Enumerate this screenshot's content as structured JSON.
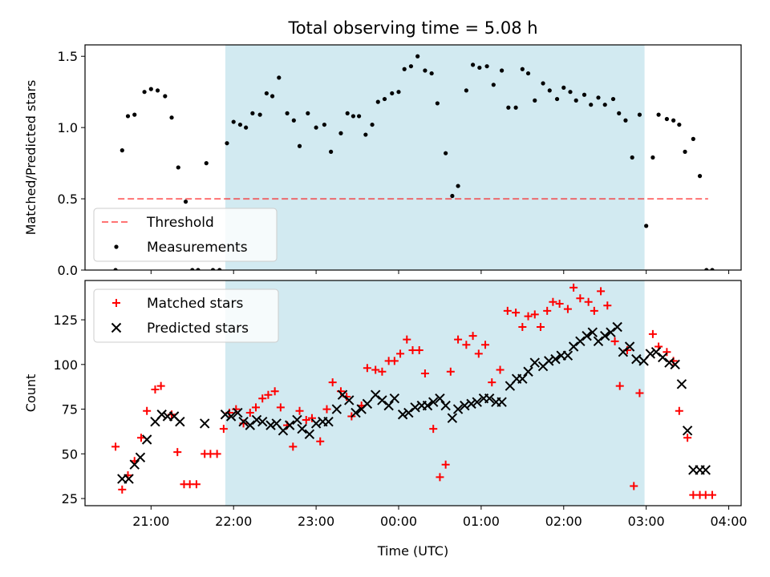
{
  "title": "Total observing time = 5.08 h",
  "xlabel": "Time (UTC)",
  "colors": {
    "night_band": "#add8e6",
    "threshold": "#ff0000",
    "measurements": "#000000",
    "matched": "#ff0000",
    "predicted": "#000000"
  },
  "chart_data": [
    {
      "type": "scatter",
      "ylabel": "Matched/Predicted stars",
      "x_unit": "hours UTC (values past 24 are after midnight)",
      "xlim": [
        20.2,
        28.15
      ],
      "ylim": [
        0,
        1.58
      ],
      "yticks": [
        0.0,
        0.5,
        1.0,
        1.5
      ],
      "ytick_labels": [
        "0.0",
        "0.5",
        "1.0",
        "1.5"
      ],
      "xticks": [
        21,
        22,
        23,
        24,
        25,
        26,
        27,
        28
      ],
      "xtick_labels": [
        "",
        "",
        "",
        "",
        "",
        "",
        "",
        ""
      ],
      "shaded_region": {
        "x0": 21.9,
        "x1": 26.98
      },
      "threshold": {
        "name": "Threshold",
        "y": 0.5,
        "x0": 20.6,
        "x1": 27.75,
        "style": "dashed"
      },
      "legend": {
        "position": "lower-left",
        "entries": [
          "Threshold",
          "Measurements"
        ]
      },
      "series": [
        {
          "name": "Measurements",
          "marker": "dot",
          "x": [
            20.57,
            20.65,
            20.72,
            20.8,
            20.92,
            21.0,
            21.08,
            21.17,
            21.25,
            21.33,
            21.42,
            21.5,
            21.57,
            21.67,
            21.75,
            21.83,
            21.92,
            22.0,
            22.08,
            22.15,
            22.23,
            22.32,
            22.4,
            22.47,
            22.55,
            22.65,
            22.73,
            22.8,
            22.9,
            23.0,
            23.1,
            23.18,
            23.3,
            23.38,
            23.45,
            23.52,
            23.6,
            23.68,
            23.75,
            23.83,
            23.92,
            24.0,
            24.07,
            24.15,
            24.23,
            24.32,
            24.4,
            24.47,
            24.57,
            24.65,
            24.72,
            24.82,
            24.9,
            24.98,
            25.07,
            25.15,
            25.25,
            25.33,
            25.42,
            25.5,
            25.57,
            25.65,
            25.75,
            25.83,
            25.92,
            26.0,
            26.08,
            26.15,
            26.25,
            26.33,
            26.42,
            26.5,
            26.6,
            26.67,
            26.75,
            26.83,
            26.92,
            27.0,
            27.08,
            27.15,
            27.25,
            27.33,
            27.4,
            27.47,
            27.57,
            27.65,
            27.73,
            27.8
          ],
          "y": [
            0.0,
            0.84,
            1.08,
            1.09,
            1.25,
            1.27,
            1.26,
            1.22,
            1.07,
            0.72,
            0.48,
            0.0,
            0.0,
            0.75,
            0.0,
            0.0,
            0.89,
            1.04,
            1.02,
            1.0,
            1.1,
            1.09,
            1.24,
            1.22,
            1.35,
            1.1,
            1.05,
            0.87,
            1.1,
            1.0,
            1.02,
            0.83,
            0.96,
            1.1,
            1.08,
            1.08,
            0.95,
            1.02,
            1.18,
            1.2,
            1.24,
            1.25,
            1.41,
            1.43,
            1.5,
            1.4,
            1.38,
            1.17,
            0.82,
            0.52,
            0.59,
            1.26,
            1.44,
            1.42,
            1.43,
            1.3,
            1.4,
            1.14,
            1.14,
            1.41,
            1.38,
            1.19,
            1.31,
            1.26,
            1.2,
            1.28,
            1.25,
            1.19,
            1.23,
            1.16,
            1.21,
            1.16,
            1.2,
            1.1,
            1.05,
            0.79,
            1.09,
            0.31,
            0.79,
            1.09,
            1.06,
            1.05,
            1.02,
            0.83,
            0.92,
            0.66,
            0.0,
            0.0
          ]
        }
      ]
    },
    {
      "type": "scatter",
      "ylabel": "Count",
      "x_unit": "hours UTC (values past 24 are after midnight)",
      "xlim": [
        20.2,
        28.15
      ],
      "ylim": [
        21,
        147
      ],
      "yticks": [
        25,
        50,
        75,
        100,
        125
      ],
      "ytick_labels": [
        "25",
        "50",
        "75",
        "100",
        "125"
      ],
      "xticks": [
        21,
        22,
        23,
        24,
        25,
        26,
        27,
        28
      ],
      "xtick_labels": [
        "21:00",
        "22:00",
        "23:00",
        "00:00",
        "01:00",
        "02:00",
        "03:00",
        "04:00"
      ],
      "shaded_region": {
        "x0": 21.9,
        "x1": 26.98
      },
      "legend": {
        "position": "upper-left",
        "entries": [
          "Matched stars",
          "Predicted stars"
        ]
      },
      "series": [
        {
          "name": "Matched stars",
          "marker": "plus",
          "x": [
            20.57,
            20.65,
            20.72,
            20.8,
            20.88,
            20.95,
            21.05,
            21.12,
            21.25,
            21.32,
            21.4,
            21.47,
            21.55,
            21.65,
            21.72,
            21.8,
            21.88,
            21.95,
            22.03,
            22.12,
            22.2,
            22.27,
            22.35,
            22.42,
            22.5,
            22.57,
            22.65,
            22.72,
            22.8,
            22.88,
            22.95,
            23.05,
            23.13,
            23.2,
            23.3,
            23.37,
            23.43,
            23.55,
            23.62,
            23.72,
            23.8,
            23.88,
            23.95,
            24.02,
            24.1,
            24.17,
            24.25,
            24.32,
            24.42,
            24.5,
            24.57,
            24.63,
            24.72,
            24.82,
            24.9,
            24.97,
            25.05,
            25.13,
            25.23,
            25.32,
            25.42,
            25.5,
            25.57,
            25.65,
            25.72,
            25.8,
            25.87,
            25.95,
            26.05,
            26.12,
            26.2,
            26.3,
            26.37,
            26.45,
            26.53,
            26.62,
            26.68,
            26.77,
            26.85,
            26.92,
            27.08,
            27.15,
            27.25,
            27.33,
            27.4,
            27.5,
            27.57,
            27.65,
            27.72,
            27.8
          ],
          "y": [
            54,
            30,
            38,
            46,
            59,
            74,
            86,
            88,
            72,
            51,
            33,
            33,
            33,
            50,
            50,
            50,
            64,
            73,
            75,
            67,
            73,
            76,
            81,
            83,
            85,
            76,
            66,
            54,
            74,
            69,
            70,
            57,
            75,
            90,
            85,
            82,
            71,
            77,
            98,
            97,
            96,
            102,
            102,
            106,
            114,
            108,
            108,
            95,
            64,
            37,
            44,
            96,
            114,
            111,
            116,
            106,
            111,
            90,
            97,
            130,
            129,
            121,
            127,
            128,
            121,
            130,
            135,
            134,
            131,
            143,
            137,
            135,
            130,
            141,
            133,
            113,
            88,
            108,
            32,
            84,
            117,
            110,
            107,
            102,
            74,
            59,
            27,
            27,
            27,
            27
          ]
        },
        {
          "name": "Predicted stars",
          "marker": "x",
          "x": [
            20.65,
            20.73,
            20.8,
            20.87,
            20.95,
            21.05,
            21.13,
            21.2,
            21.28,
            21.35,
            21.65,
            21.9,
            21.97,
            22.05,
            22.12,
            22.2,
            22.28,
            22.35,
            22.45,
            22.52,
            22.6,
            22.68,
            22.77,
            22.83,
            22.92,
            23.0,
            23.08,
            23.15,
            23.25,
            23.32,
            23.4,
            23.48,
            23.55,
            23.62,
            23.72,
            23.8,
            23.88,
            23.95,
            24.05,
            24.12,
            24.2,
            24.28,
            24.35,
            24.42,
            24.5,
            24.57,
            24.65,
            24.72,
            24.8,
            24.88,
            24.95,
            25.03,
            25.1,
            25.18,
            25.25,
            25.35,
            25.43,
            25.5,
            25.57,
            25.65,
            25.75,
            25.82,
            25.9,
            25.97,
            26.05,
            26.12,
            26.2,
            26.28,
            26.35,
            26.42,
            26.5,
            26.57,
            26.65,
            26.72,
            26.8,
            26.88,
            26.97,
            27.05,
            27.12,
            27.2,
            27.28,
            27.35,
            27.43,
            27.5,
            27.57,
            27.65,
            27.72
          ],
          "y": [
            36,
            36,
            44,
            48,
            58,
            68,
            72,
            71,
            71,
            68,
            67,
            72,
            71,
            73,
            68,
            66,
            69,
            68,
            66,
            67,
            63,
            66,
            69,
            64,
            61,
            67,
            68,
            68,
            75,
            83,
            80,
            73,
            75,
            78,
            83,
            80,
            77,
            81,
            72,
            73,
            76,
            77,
            77,
            79,
            81,
            77,
            70,
            75,
            77,
            78,
            79,
            81,
            81,
            79,
            79,
            88,
            92,
            92,
            96,
            101,
            99,
            102,
            103,
            105,
            105,
            110,
            113,
            116,
            118,
            113,
            116,
            118,
            121,
            107,
            110,
            103,
            102,
            106,
            107,
            104,
            101,
            100,
            89,
            63,
            41,
            41,
            41
          ]
        }
      ]
    }
  ]
}
